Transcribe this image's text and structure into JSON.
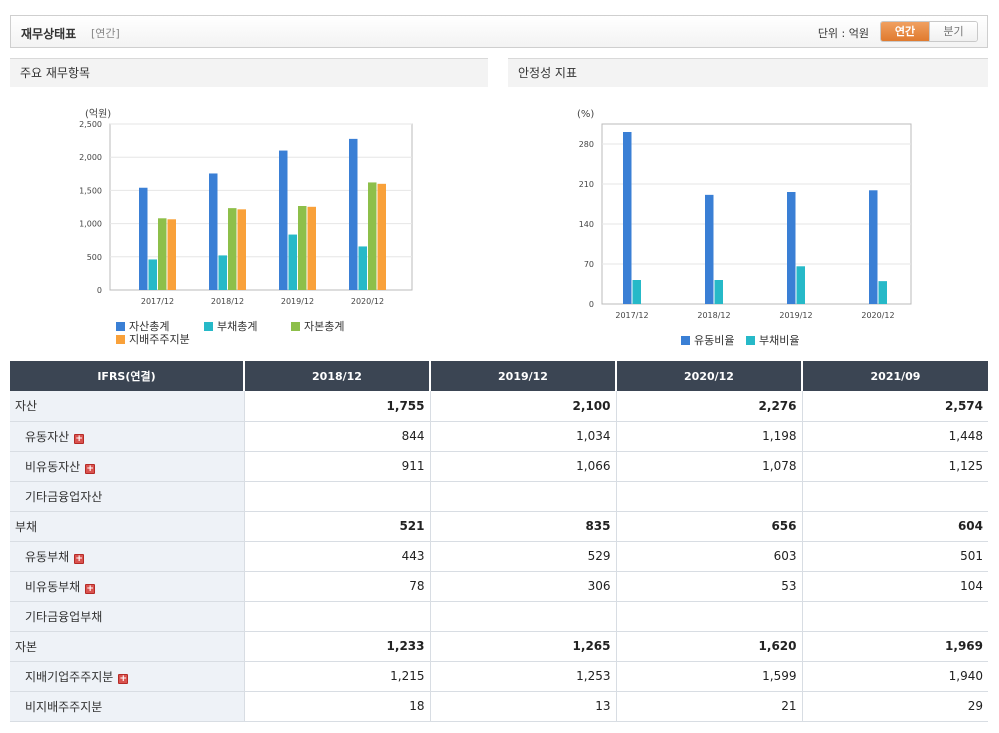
{
  "header": {
    "title": "재무상태표",
    "subtitle": "[연간]",
    "unit_label": "단위 : 억원",
    "toggle": {
      "annual": "연간",
      "quarterly": "분기"
    }
  },
  "panels": {
    "left_title": "주요 재무항목",
    "right_title": "안정성 지표"
  },
  "colors": {
    "blue": "#3a7fd5",
    "teal": "#26b9c8",
    "green": "#8dbf4a",
    "orange": "#f9a13a",
    "header_dark": "#3b4553"
  },
  "chart_data": [
    {
      "type": "bar",
      "unit_label": "(억원)",
      "categories": [
        "2017/12",
        "2018/12",
        "2019/12",
        "2020/12"
      ],
      "ylim": [
        0,
        2500
      ],
      "yticks": [
        0,
        500,
        1000,
        1500,
        2000,
        2500
      ],
      "ytick_labels": [
        "0",
        "500",
        "1,000",
        "1,500",
        "2,000",
        "2,500"
      ],
      "grid": true,
      "legend_position": "bottom-left",
      "series": [
        {
          "name": "자산총계",
          "color": "#3a7fd5",
          "values": [
            1540,
            1755,
            2100,
            2276
          ]
        },
        {
          "name": "부채총계",
          "color": "#26b9c8",
          "values": [
            460,
            521,
            835,
            656
          ]
        },
        {
          "name": "자본총계",
          "color": "#8dbf4a",
          "values": [
            1080,
            1233,
            1265,
            1620
          ]
        },
        {
          "name": "지배주주지분",
          "color": "#f9a13a",
          "values": [
            1065,
            1215,
            1253,
            1599
          ]
        }
      ]
    },
    {
      "type": "bar",
      "unit_label": "(%)",
      "categories": [
        "2017/12",
        "2018/12",
        "2019/12",
        "2020/12"
      ],
      "ylim": [
        0,
        315
      ],
      "yticks": [
        0,
        70,
        140,
        210,
        280
      ],
      "ytick_labels": [
        "0",
        "70",
        "140",
        "210",
        "280"
      ],
      "grid": true,
      "legend_position": "bottom-center",
      "series": [
        {
          "name": "유동비율",
          "color": "#3a7fd5",
          "values": [
            301,
            191,
            196,
            199
          ]
        },
        {
          "name": "부채비율",
          "color": "#26b9c8",
          "values": [
            42,
            42,
            66,
            40
          ]
        }
      ]
    }
  ],
  "table": {
    "head_label": "IFRS(연결)",
    "columns": [
      "2018/12",
      "2019/12",
      "2020/12",
      "2021/09"
    ],
    "rows": [
      {
        "label": "자산",
        "major": true,
        "plus": false,
        "values": [
          "1,755",
          "2,100",
          "2,276",
          "2,574"
        ]
      },
      {
        "label": "유동자산",
        "major": false,
        "plus": true,
        "values": [
          "844",
          "1,034",
          "1,198",
          "1,448"
        ]
      },
      {
        "label": "비유동자산",
        "major": false,
        "plus": true,
        "values": [
          "911",
          "1,066",
          "1,078",
          "1,125"
        ]
      },
      {
        "label": "기타금융업자산",
        "major": false,
        "plus": false,
        "values": [
          "",
          "",
          "",
          ""
        ]
      },
      {
        "label": "부채",
        "major": true,
        "plus": false,
        "values": [
          "521",
          "835",
          "656",
          "604"
        ]
      },
      {
        "label": "유동부채",
        "major": false,
        "plus": true,
        "values": [
          "443",
          "529",
          "603",
          "501"
        ]
      },
      {
        "label": "비유동부채",
        "major": false,
        "plus": true,
        "values": [
          "78",
          "306",
          "53",
          "104"
        ]
      },
      {
        "label": "기타금융업부채",
        "major": false,
        "plus": false,
        "values": [
          "",
          "",
          "",
          ""
        ]
      },
      {
        "label": "자본",
        "major": true,
        "plus": false,
        "values": [
          "1,233",
          "1,265",
          "1,620",
          "1,969"
        ]
      },
      {
        "label": "지배기업주주지분",
        "major": false,
        "plus": true,
        "values": [
          "1,215",
          "1,253",
          "1,599",
          "1,940"
        ]
      },
      {
        "label": "비지배주주지분",
        "major": false,
        "plus": false,
        "values": [
          "18",
          "13",
          "21",
          "29"
        ]
      }
    ],
    "plus_symbol": "+"
  }
}
